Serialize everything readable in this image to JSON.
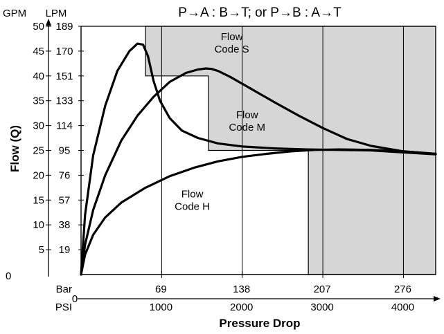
{
  "chart_data": {
    "type": "line",
    "title": "P→A : B→T; or P→B : A→T",
    "xlabel": "Pressure Drop",
    "ylabel": "Flow (Q)",
    "x_unit_psi": "PSI",
    "x_unit_bar": "Bar",
    "y_unit_gpm": "GPM",
    "y_unit_lpm": "LPM",
    "xlim": [
      0,
      4400
    ],
    "ylim": [
      0,
      50
    ],
    "x_ticks_psi": [
      "1000",
      "2000",
      "3000",
      "4000"
    ],
    "x_ticks_psi_values": [
      1000,
      2000,
      3000,
      4000
    ],
    "x_ticks_bar": [
      "69",
      "138",
      "207",
      "276"
    ],
    "x_ticks_bar_values": [
      1000,
      2000,
      3000,
      4000
    ],
    "y_ticks_gpm": [
      "5",
      "10",
      "15",
      "20",
      "25",
      "30",
      "35",
      "40",
      "45",
      "50"
    ],
    "y_ticks_gpm_values": [
      5,
      10,
      15,
      20,
      25,
      30,
      35,
      40,
      45,
      50
    ],
    "y_ticks_lpm": [
      "19",
      "38",
      "57",
      "76",
      "95",
      "114",
      "133",
      "151",
      "170",
      "189"
    ],
    "x_origin_label": "0",
    "y_origin_label": "0",
    "grid": true,
    "legend": "none",
    "region_color": "#d6d6d6",
    "regions": [
      {
        "name": "Flow Code S",
        "x_start": 800,
        "y_start": 40
      },
      {
        "name": "Flow Code M",
        "x_start": 1580,
        "y_start": 25
      },
      {
        "name": "Flow Code H",
        "x_start": 2820,
        "y_start": 0
      }
    ],
    "region_labels": [
      {
        "lines": [
          "Flow",
          "Code S"
        ],
        "x": 1870,
        "y": 46.5
      },
      {
        "lines": [
          "Flow",
          "Code M"
        ],
        "x": 2060,
        "y": 30.8
      },
      {
        "lines": [
          "Flow",
          "Code H"
        ],
        "x": 1380,
        "y": 14.8
      }
    ],
    "series": [
      {
        "x": [
          0,
          50,
          150,
          300,
          450,
          600,
          700,
          770,
          830,
          900,
          980,
          1100,
          1250,
          1450,
          1700,
          2000,
          2400,
          2800,
          3200,
          3600,
          4000,
          4400
        ],
        "y": [
          0,
          12,
          24,
          34,
          41,
          45,
          46.5,
          46.3,
          44,
          39,
          35,
          31.5,
          29,
          27.5,
          26.4,
          25.8,
          25.4,
          25.2,
          25.1,
          25,
          24.6,
          24.2
        ]
      },
      {
        "x": [
          0,
          50,
          150,
          300,
          500,
          700,
          900,
          1100,
          1300,
          1450,
          1550,
          1620,
          1700,
          1850,
          2100,
          2400,
          2700,
          3000,
          3300,
          3600,
          4000,
          4400
        ],
        "y": [
          0,
          6,
          13,
          20,
          27,
          32,
          35.8,
          38.8,
          40.6,
          41.3,
          41.5,
          41.4,
          41,
          39.8,
          37.5,
          34.7,
          32,
          29.5,
          27.3,
          25.9,
          24.8,
          24.3
        ]
      },
      {
        "x": [
          0,
          50,
          150,
          300,
          500,
          800,
          1100,
          1400,
          1700,
          2000,
          2300,
          2600,
          2900,
          3200,
          3600,
          4000,
          4400
        ],
        "y": [
          0,
          4,
          8,
          11.5,
          14.5,
          17.5,
          19.8,
          21.5,
          22.8,
          23.7,
          24.3,
          24.8,
          25.1,
          25.2,
          25.1,
          24.8,
          24.3
        ]
      }
    ]
  }
}
